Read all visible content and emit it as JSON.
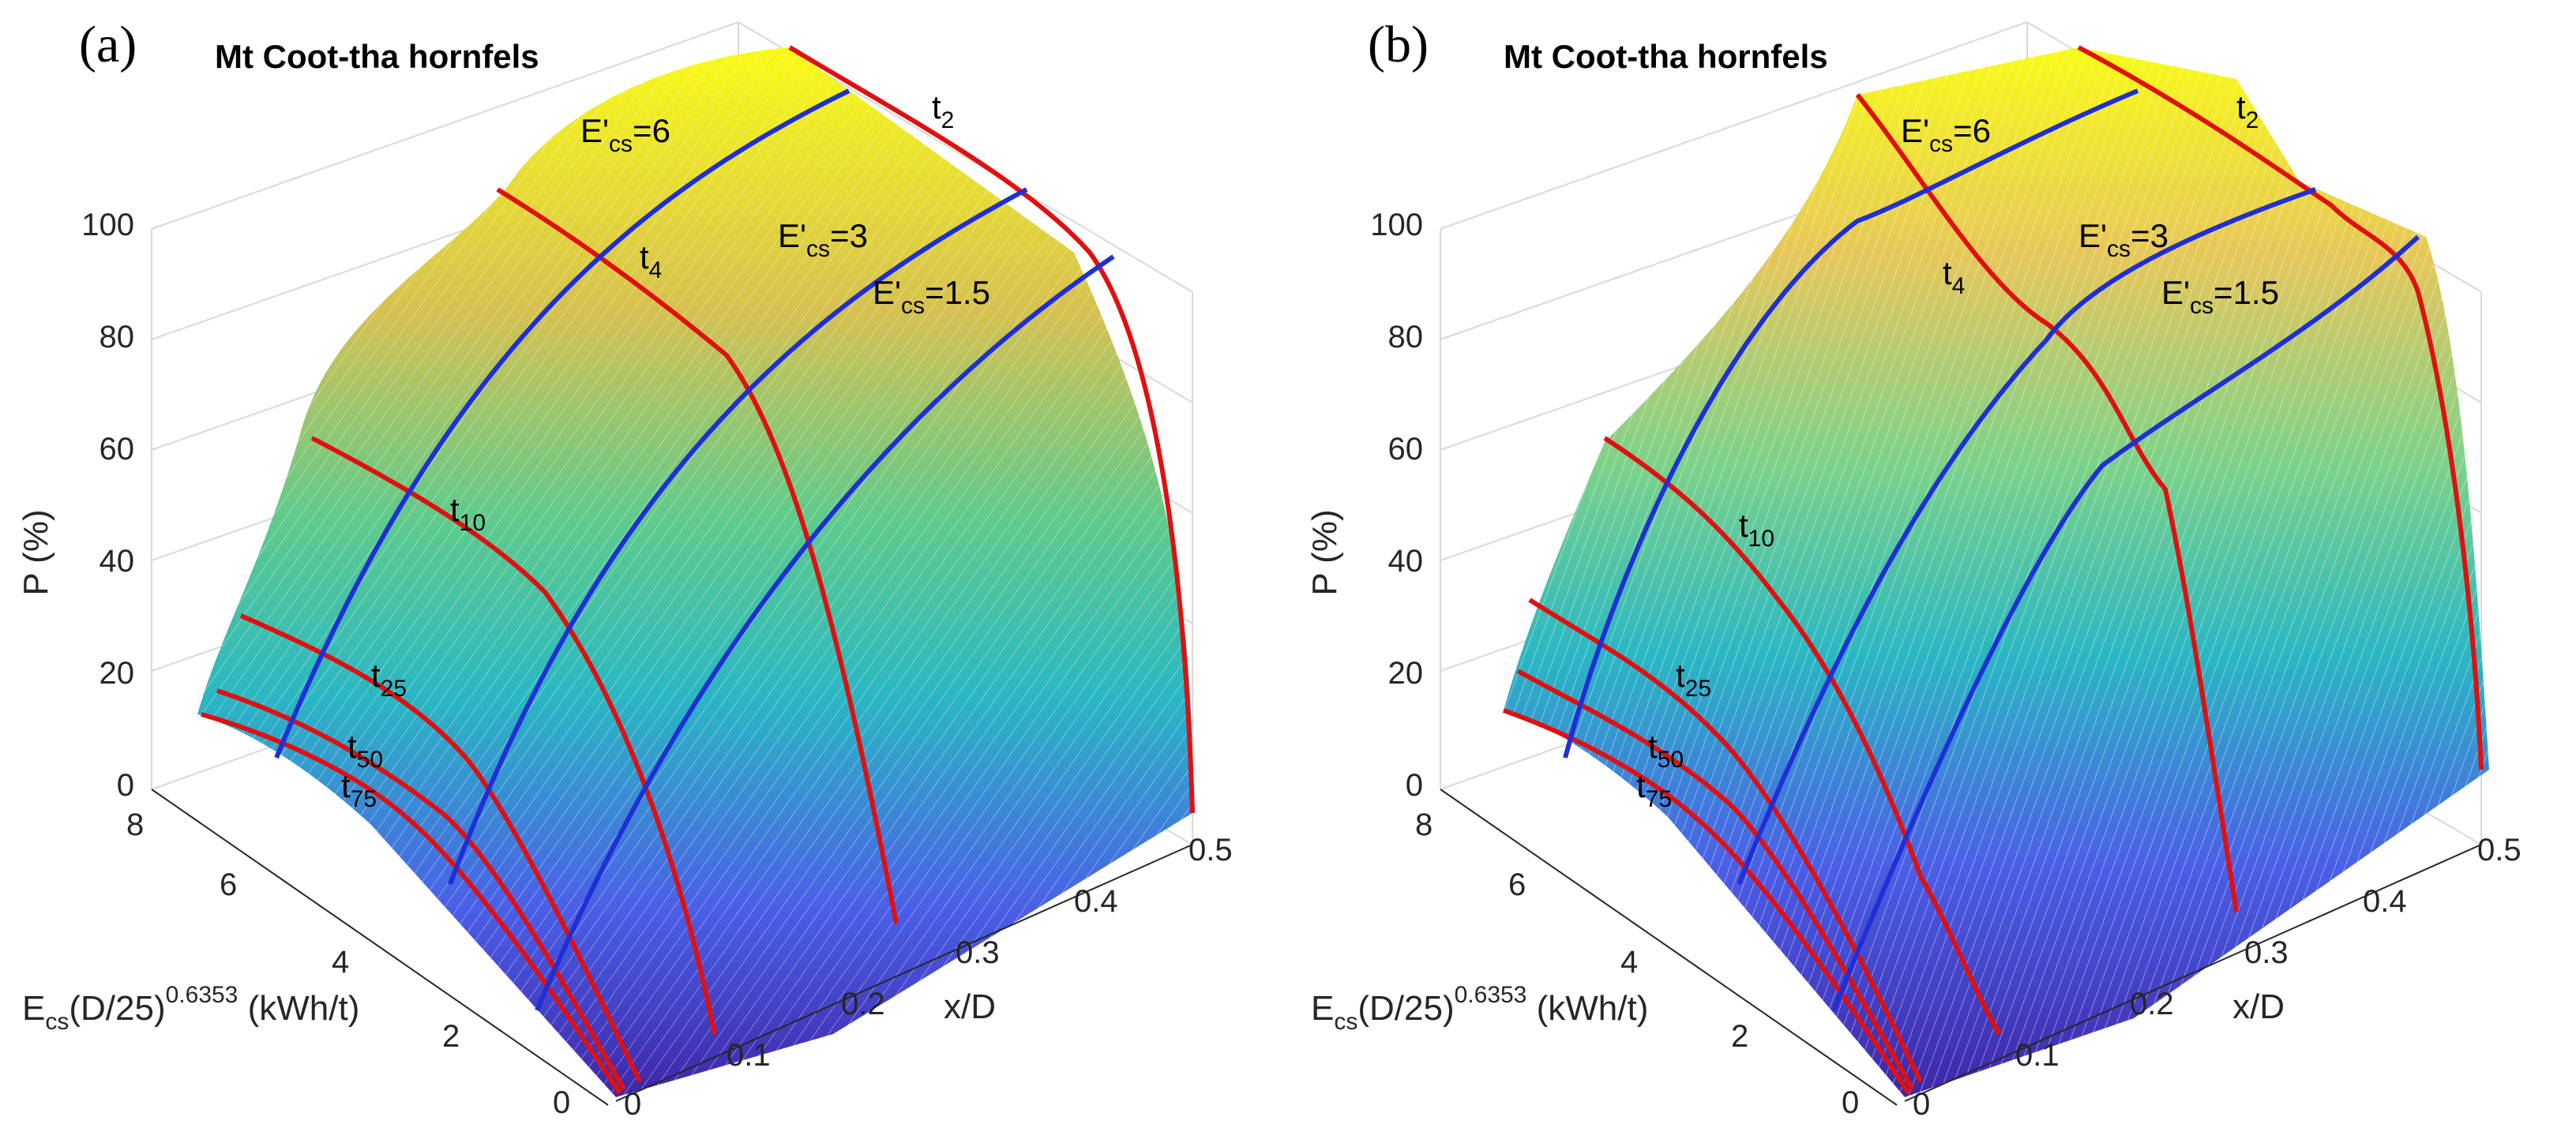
{
  "figure": {
    "panels": [
      "a",
      "b"
    ]
  },
  "colors": {
    "surface_low": "#3e26a8",
    "surface_mid": "#2ab7c3",
    "surface_high": "#f9fb15",
    "energy_curve": "#1f2fd6",
    "product_curve": "#e01010",
    "box": "#d9d9d9"
  },
  "chart_data": [
    {
      "type": "surface",
      "panel_label": "(a)",
      "title": "Mt Coot-tha hornfels",
      "zlabel": "P (%)",
      "ylabel_main": "E",
      "ylabel_sub": "cs",
      "ylabel_mid": "(D/25)",
      "ylabel_sup": "0.6353",
      "ylabel_tail": " (kWh/t)",
      "xlabel": "x/D",
      "x_ticks": [
        "0",
        "0.1",
        "0.2",
        "0.3",
        "0.4",
        "0.5"
      ],
      "y_ticks": [
        "0",
        "2",
        "4",
        "6",
        "8"
      ],
      "z_ticks": [
        "0",
        "20",
        "40",
        "60",
        "80",
        "100"
      ],
      "xlim": [
        0,
        0.5
      ],
      "ylim": [
        0,
        8
      ],
      "zlim": [
        0,
        100
      ],
      "surface_peak_P": 100,
      "energy_curves": [
        {
          "label": "E'cs=6",
          "main": "E'",
          "sub": "cs",
          "tail": "=6",
          "ecs": 6
        },
        {
          "label": "E'cs=3",
          "main": "E'",
          "sub": "cs",
          "tail": "=3",
          "ecs": 3
        },
        {
          "label": "E'cs=1.5",
          "main": "E'",
          "sub": "cs",
          "tail": "=1.5",
          "ecs": 1.5
        }
      ],
      "product_curves": [
        {
          "label": "t2",
          "main": "t",
          "sub": "2"
        },
        {
          "label": "t4",
          "main": "t",
          "sub": "4"
        },
        {
          "label": "t10",
          "main": "t",
          "sub": "10"
        },
        {
          "label": "t25",
          "main": "t",
          "sub": "25"
        },
        {
          "label": "t50",
          "main": "t",
          "sub": "50"
        },
        {
          "label": "t75",
          "main": "t",
          "sub": "75"
        }
      ]
    },
    {
      "type": "surface",
      "panel_label": "(b)",
      "title": "Mt Coot-tha hornfels",
      "zlabel": "P (%)",
      "ylabel_main": "E",
      "ylabel_sub": "cs",
      "ylabel_mid": "(D/25)",
      "ylabel_sup": "0.6353",
      "ylabel_tail": " (kWh/t)",
      "xlabel": "x/D",
      "x_ticks": [
        "0",
        "0.1",
        "0.2",
        "0.3",
        "0.4",
        "0.5"
      ],
      "y_ticks": [
        "0",
        "2",
        "4",
        "6",
        "8"
      ],
      "z_ticks": [
        "0",
        "20",
        "40",
        "60",
        "80",
        "100"
      ],
      "xlim": [
        0,
        0.5
      ],
      "ylim": [
        0,
        8
      ],
      "zlim": [
        0,
        100
      ],
      "surface_peak_P": 100,
      "energy_curves": [
        {
          "label": "E'cs=6",
          "main": "E'",
          "sub": "cs",
          "tail": "=6",
          "ecs": 6
        },
        {
          "label": "E'cs=3",
          "main": "E'",
          "sub": "cs",
          "tail": "=3",
          "ecs": 3
        },
        {
          "label": "E'cs=1.5",
          "main": "E'",
          "sub": "cs",
          "tail": "=1.5",
          "ecs": 1.5
        }
      ],
      "product_curves": [
        {
          "label": "t2",
          "main": "t",
          "sub": "2"
        },
        {
          "label": "t4",
          "main": "t",
          "sub": "4"
        },
        {
          "label": "t10",
          "main": "t",
          "sub": "10"
        },
        {
          "label": "t25",
          "main": "t",
          "sub": "25"
        },
        {
          "label": "t50",
          "main": "t",
          "sub": "50"
        },
        {
          "label": "t75",
          "main": "t",
          "sub": "75"
        }
      ]
    }
  ]
}
